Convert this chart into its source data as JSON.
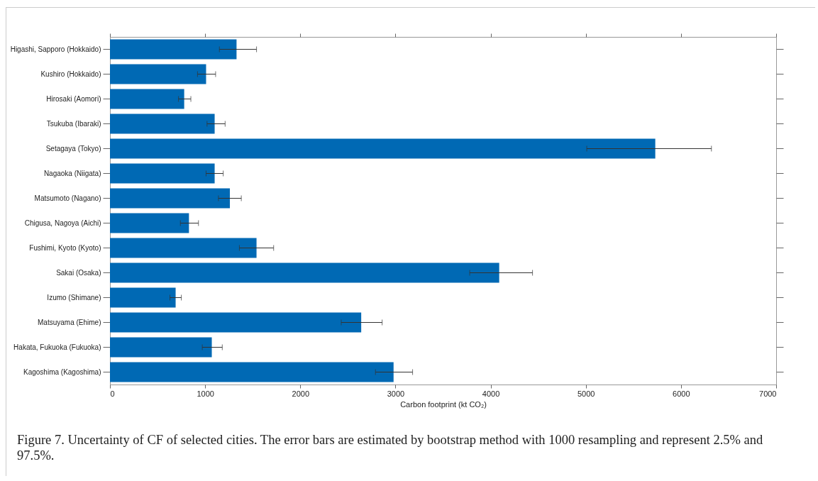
{
  "chart_data": {
    "type": "bar",
    "orientation": "horizontal",
    "xlabel": "Carbon footprint (kt CO₂)",
    "categories": [
      "Higashi, Sapporo (Hokkaido)",
      "Kushiro (Hokkaido)",
      "Hirosaki (Aomori)",
      "Tsukuba (Ibaraki)",
      "Setagaya (Tokyo)",
      "Nagaoka (Niigata)",
      "Matsumoto (Nagano)",
      "Chigusa, Nagoya (Aichi)",
      "Fushimi, Kyoto (Kyoto)",
      "Sakai (Osaka)",
      "Izumo (Shimane)",
      "Matsuyama (Ehime)",
      "Hakata, Fukuoka (Fukuoka)",
      "Kagoshima (Kagoshima)"
    ],
    "values": [
      1330,
      1010,
      780,
      1100,
      5730,
      1100,
      1260,
      830,
      1540,
      4090,
      690,
      2640,
      1070,
      2980
    ],
    "errors": [
      [
        1150,
        1540
      ],
      [
        920,
        1110
      ],
      [
        720,
        850
      ],
      [
        1020,
        1210
      ],
      [
        5010,
        6320
      ],
      [
        1010,
        1190
      ],
      [
        1140,
        1380
      ],
      [
        740,
        930
      ],
      [
        1360,
        1720
      ],
      [
        3780,
        4440
      ],
      [
        630,
        750
      ],
      [
        2430,
        2860
      ],
      [
        970,
        1180
      ],
      [
        2790,
        3180
      ]
    ],
    "color": "#0069b4",
    "xlim": [
      0,
      7000
    ],
    "xticks": [
      0,
      1000,
      2000,
      3000,
      4000,
      5000,
      6000,
      7000
    ],
    "grid": false,
    "annotations": [
      "Figure 7. Uncertainty of CF of selected cities. The error bars are estimated by bootstrap method with 1000 resampling and represent 2.5% and 97.5%."
    ]
  }
}
